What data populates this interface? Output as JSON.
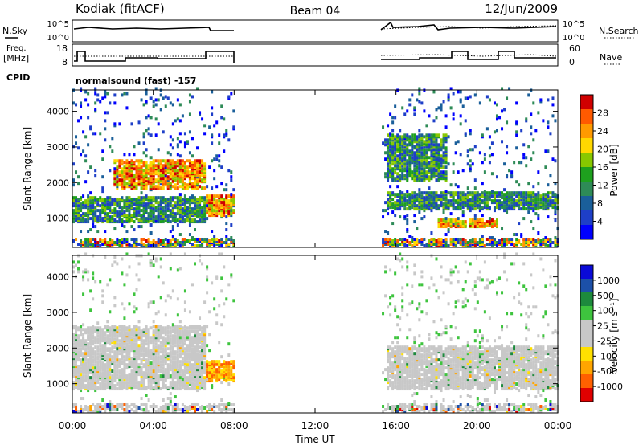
{
  "header": {
    "station": "Kodiak (fitACF)",
    "beam": "Beam 04",
    "date": "12/Jun/2009"
  },
  "noise_panel": {
    "left_label": "N.Sky",
    "right_label": "N.Search",
    "ticks_left": [
      "10^5",
      "10^0"
    ],
    "ticks_right": [
      "10^5",
      "10^0"
    ]
  },
  "freq_panel": {
    "left_label_1": "Freq.",
    "left_label_2": "[MHz]",
    "right_label": "Nave",
    "ticks_left": [
      "18",
      "8"
    ],
    "ticks_right": [
      "60",
      "0"
    ],
    "cpid_label": "CPID",
    "cpid_text": "normalsound (fast) -157"
  },
  "power_panel": {
    "ylabel": "Slant Range [km]",
    "colorbar_label": "Power [dB]",
    "colorbar_ticks": [
      "28",
      "24",
      "20",
      "16",
      "12",
      "8",
      "4"
    ],
    "colorbar_colors": [
      "#d00000",
      "#ff5a00",
      "#ff9a00",
      "#ffd800",
      "#88c800",
      "#1ea01e",
      "#2e8b57",
      "#1a5f9a",
      "#1e3fc8",
      "#0000ff"
    ]
  },
  "velocity_panel": {
    "ylabel": "Slant Range [km]",
    "colorbar_label": "Velocity [m s⁻¹]",
    "colorbar_ticks": [
      "1000",
      "500",
      "100",
      "25",
      "-25",
      "-100",
      "-500",
      "-1000"
    ],
    "colorbar_colors": [
      "#0a0ad8",
      "#1c50a8",
      "#1d8a3d",
      "#3ec43e",
      "#c8c8c8",
      "#c8c8c8",
      "#ffe000",
      "#ffa500",
      "#ff6000",
      "#e00000"
    ]
  },
  "x_axis": {
    "label": "Time UT",
    "ticks": [
      "00:00",
      "04:00",
      "08:00",
      "12:00",
      "16:00",
      "20:00",
      "00:00"
    ]
  },
  "chart_data": [
    {
      "type": "heatmap",
      "title": "",
      "xlabel": "",
      "ylabel": "Slant Range [km]",
      "xlim_hours": [
        0,
        24
      ],
      "ylim_km": [
        180,
        4600
      ],
      "yticks": [
        1000,
        2000,
        3000,
        4000
      ],
      "colorbar": "Power [dB]",
      "data_intervals_hours": [
        [
          0.0,
          8.0
        ],
        [
          15.3,
          24.0
        ]
      ],
      "features": [
        {
          "t0": 0.0,
          "t1": 6.5,
          "r0": 850,
          "r1": 1550,
          "level": "medium"
        },
        {
          "t0": 2.0,
          "t1": 6.5,
          "r0": 1800,
          "r1": 2600,
          "level": "high"
        },
        {
          "t0": 6.5,
          "t1": 8.0,
          "r0": 1000,
          "r1": 1600,
          "level": "high"
        },
        {
          "t0": 15.5,
          "t1": 24.0,
          "r0": 1200,
          "r1": 1700,
          "level": "medium"
        },
        {
          "t0": 18.0,
          "t1": 21.0,
          "r0": 700,
          "r1": 900,
          "level": "high"
        },
        {
          "t0": 15.5,
          "t1": 18.5,
          "r0": 2000,
          "r1": 3300,
          "level": "medium"
        }
      ]
    },
    {
      "type": "heatmap",
      "title": "",
      "xlabel": "Time UT",
      "ylabel": "Slant Range [km]",
      "xlim_hours": [
        0,
        24
      ],
      "ylim_km": [
        180,
        4600
      ],
      "yticks": [
        1000,
        2000,
        3000,
        4000
      ],
      "colorbar": "Velocity [m s⁻¹]",
      "data_intervals_hours": [
        [
          0.0,
          8.0
        ],
        [
          15.3,
          24.0
        ]
      ],
      "features": [
        {
          "t0": 0.0,
          "t1": 6.5,
          "r0": 800,
          "r1": 2600,
          "level": "near-zero"
        },
        {
          "t0": 6.5,
          "t1": 8.0,
          "r0": 1000,
          "r1": 1600,
          "level": "negative"
        },
        {
          "t0": 15.5,
          "t1": 24.0,
          "r0": 800,
          "r1": 2000,
          "level": "near-zero"
        }
      ]
    }
  ]
}
